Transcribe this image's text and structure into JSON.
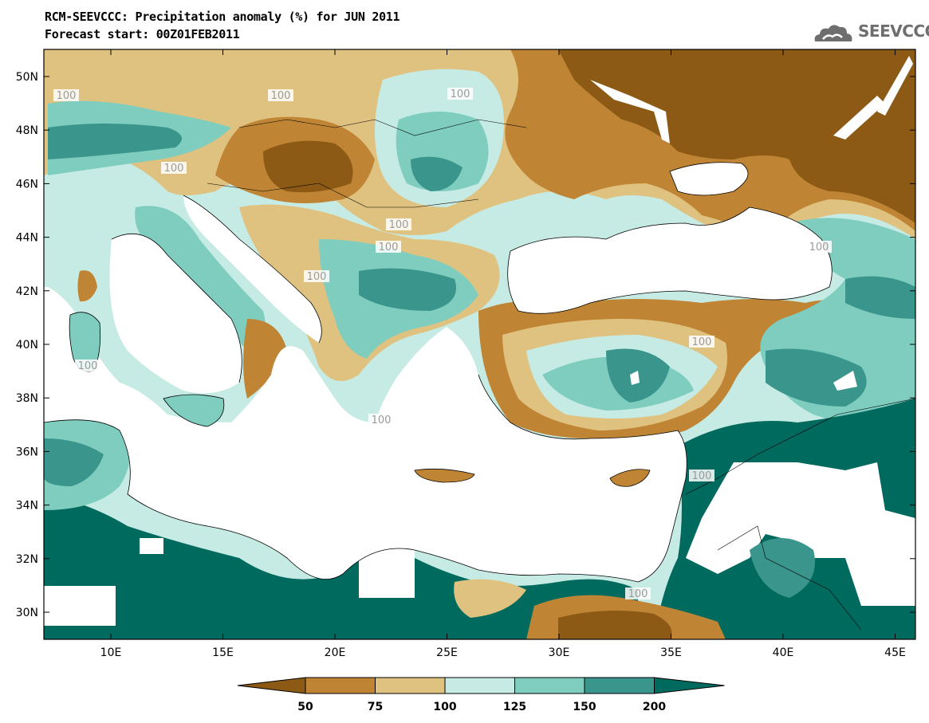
{
  "title": "RCM-SEEVCCC: Precipitation anomaly (%) for JUN 2011",
  "subtitle": "Forecast start: 00Z01FEB2011",
  "logo_text": "SEEVCCC",
  "lat_labels": [
    "50N",
    "48N",
    "46N",
    "44N",
    "42N",
    "40N",
    "38N",
    "36N",
    "34N",
    "32N",
    "30N"
  ],
  "lon_labels": [
    "10E",
    "15E",
    "20E",
    "25E",
    "30E",
    "35E",
    "40E",
    "45E"
  ],
  "contour_labels": [
    "100",
    "100",
    "100",
    "100",
    "100",
    "100",
    "100",
    "100",
    "100",
    "100",
    "100",
    "100",
    "100"
  ],
  "colorbar": {
    "levels": [
      "50",
      "75",
      "100",
      "125",
      "150",
      "200"
    ],
    "colors": [
      "#8c5a15",
      "#bf8534",
      "#e0c280",
      "#c6ebe4",
      "#7ecdbe",
      "#3a968c",
      "#006a5e"
    ]
  },
  "map_colors": {
    "sea": "#ffffff",
    "very_dry": "#8c5a15",
    "dry": "#bf8534",
    "slightly_dry": "#e0c280",
    "normal_wet": "#c6ebe4",
    "wet": "#7ecdbe",
    "very_wet": "#3a968c",
    "extreme_wet": "#006a5e"
  }
}
